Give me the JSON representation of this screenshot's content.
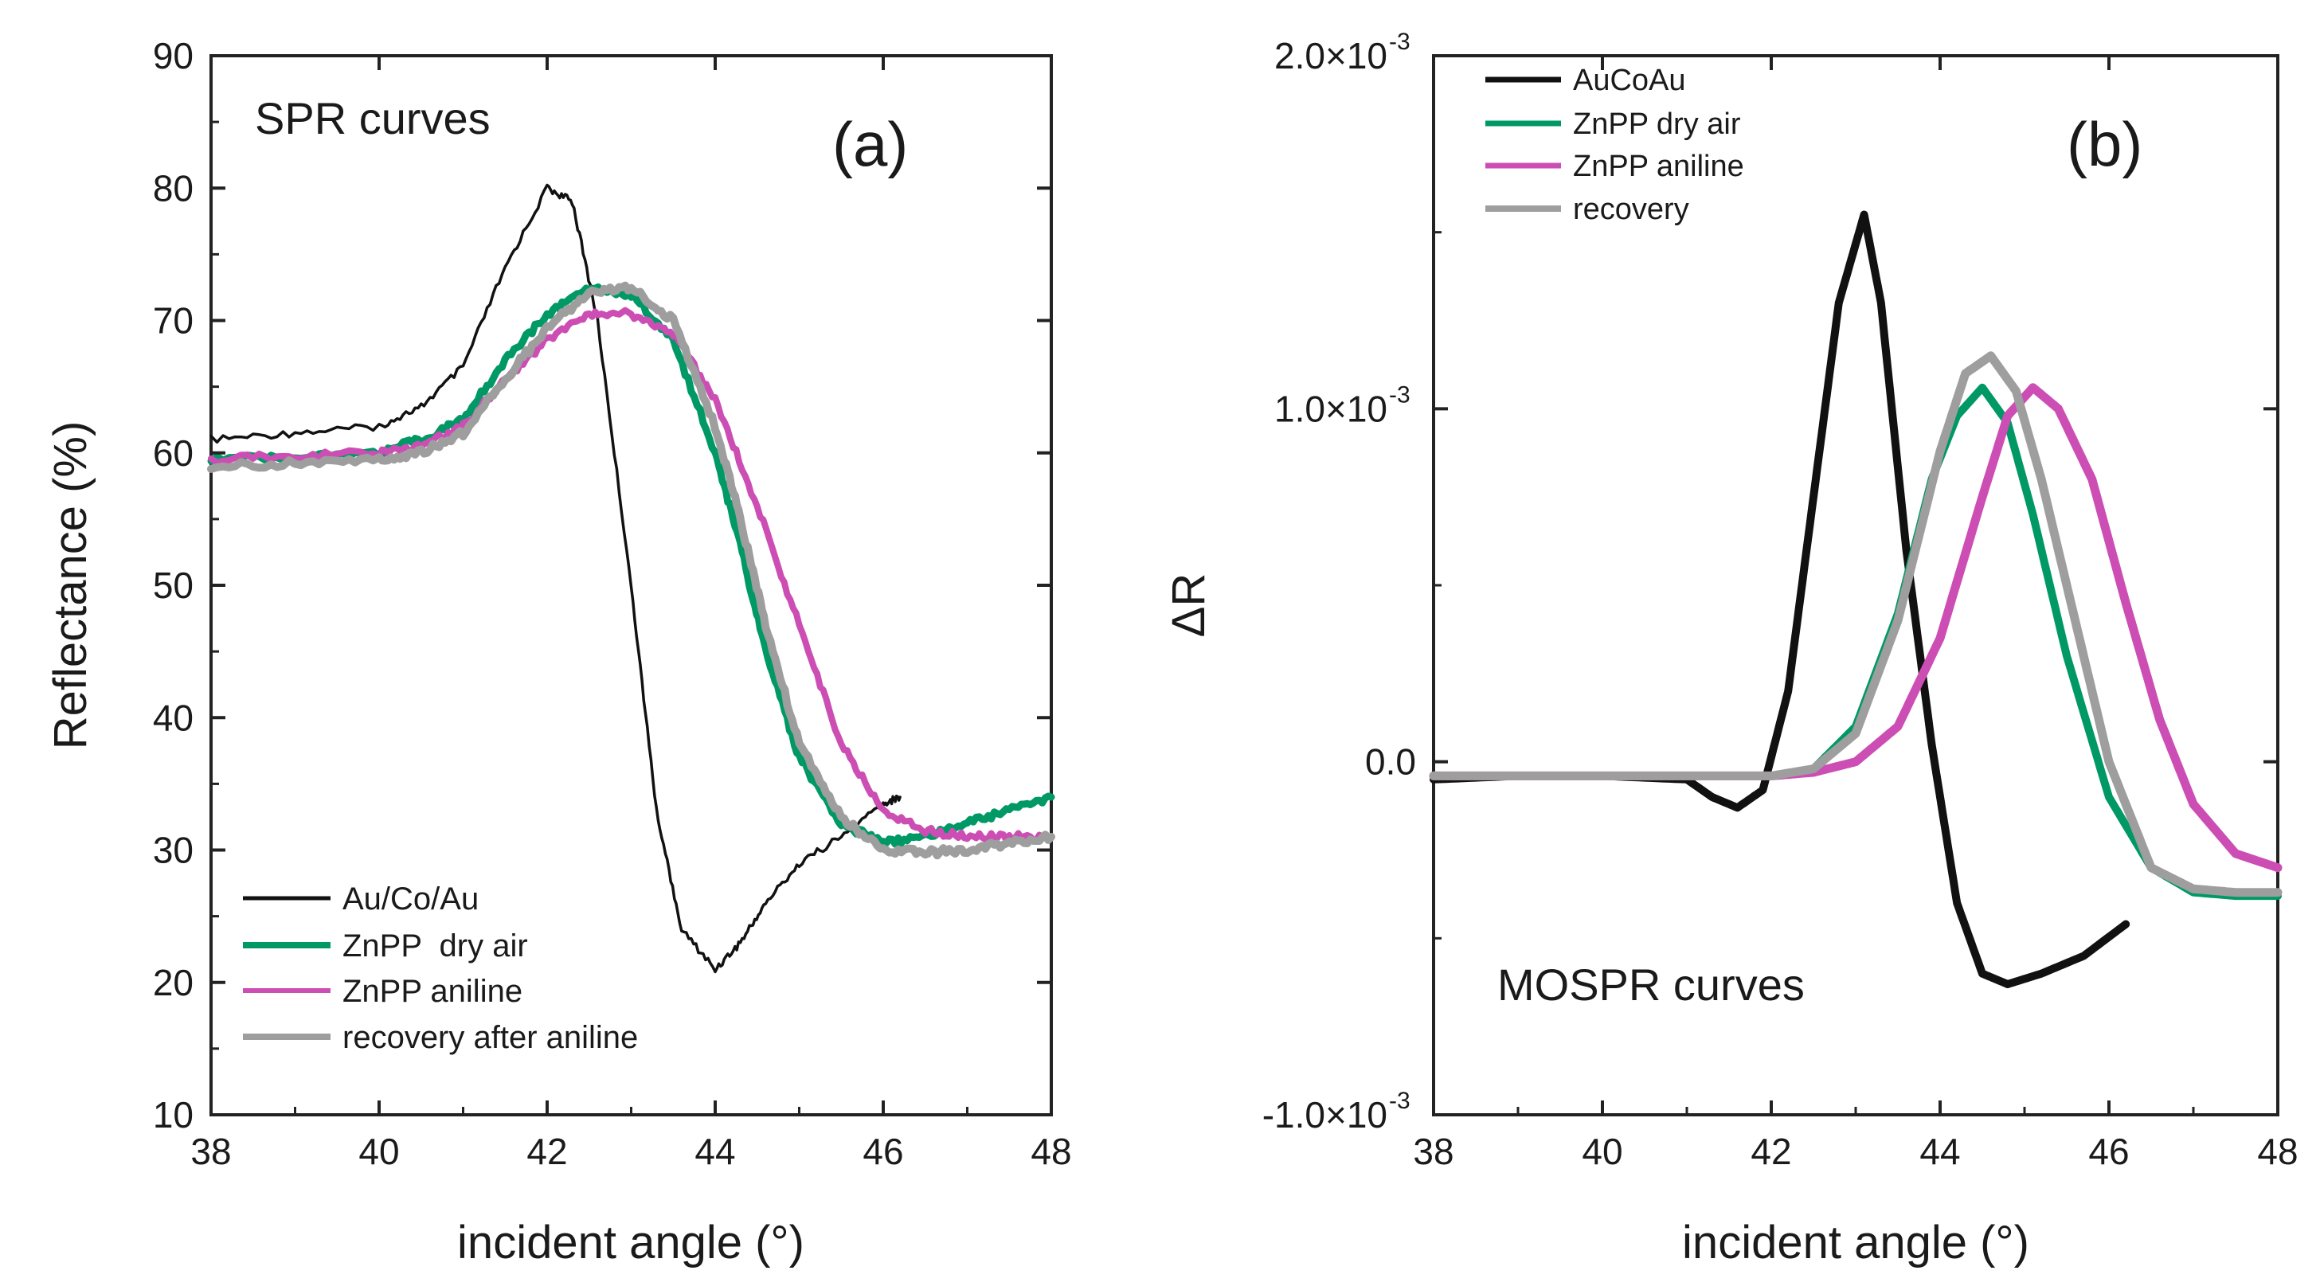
{
  "chart_data": [
    {
      "id": "panel-a",
      "type": "line",
      "panel_label": "(a)",
      "annotation": "SPR curves",
      "xlabel": "incident angle (°)",
      "ylabel": "Reflectance (%)",
      "xlim": [
        38,
        48
      ],
      "ylim": [
        10,
        90
      ],
      "xticks": [
        38,
        40,
        42,
        44,
        46,
        48
      ],
      "xtick_labels": [
        "38",
        "40",
        "42",
        "44",
        "46",
        "48"
      ],
      "yticks": [
        10,
        20,
        30,
        40,
        50,
        60,
        70,
        80,
        90
      ],
      "ytick_labels": [
        "10",
        "20",
        "30",
        "40",
        "50",
        "60",
        "70",
        "80",
        "90"
      ],
      "legend_position": "bottom-left",
      "series": [
        {
          "name": "Au/Co/Au",
          "color": "#111111",
          "x": [
            38,
            39,
            40,
            40.5,
            41,
            41.5,
            42,
            42.3,
            42.6,
            43,
            43.3,
            43.6,
            44,
            44.3,
            44.6,
            45,
            45.5,
            46,
            46.2
          ],
          "y": [
            61,
            61.5,
            62,
            63.5,
            66.5,
            74,
            80,
            79,
            70,
            50,
            33,
            24,
            21,
            23,
            26,
            29,
            31,
            33.5,
            34
          ]
        },
        {
          "name": "ZnPP  dry air",
          "color": "#009966",
          "x": [
            38,
            39,
            40,
            40.5,
            41,
            41.5,
            42,
            42.5,
            43,
            43.5,
            44,
            44.3,
            44.6,
            45,
            45.5,
            46,
            46.5,
            47,
            47.5,
            48
          ],
          "y": [
            59.5,
            59.8,
            60,
            61,
            62.5,
            67,
            70.5,
            72.5,
            72,
            68.5,
            60,
            53,
            45,
            37,
            32,
            30.5,
            31,
            32,
            33,
            34
          ]
        },
        {
          "name": "ZnPP aniline",
          "color": "#cc4eb4",
          "x": [
            38,
            39,
            40,
            40.5,
            41,
            41.5,
            42,
            42.5,
            43,
            43.5,
            44,
            44.5,
            45,
            45.5,
            46,
            46.5,
            47,
            47.5,
            48
          ],
          "y": [
            59.5,
            59.8,
            60,
            60.5,
            62,
            65.5,
            68.5,
            70.5,
            70.5,
            69,
            64,
            56,
            47,
            38,
            33,
            31.5,
            31,
            31,
            31
          ]
        },
        {
          "name": "recovery after aniline",
          "color": "#9e9e9e",
          "x": [
            38,
            39,
            40,
            40.5,
            41,
            41.5,
            42,
            42.5,
            43,
            43.5,
            44,
            44.3,
            44.6,
            45,
            45.5,
            46,
            46.5,
            47,
            47.5,
            48
          ],
          "y": [
            59,
            59.2,
            59.5,
            60,
            61.5,
            65.5,
            69.5,
            72,
            72.5,
            70,
            62,
            55,
            47,
            38,
            32.5,
            30,
            29.8,
            30,
            30.5,
            31
          ]
        }
      ]
    },
    {
      "id": "panel-b",
      "type": "line",
      "panel_label": "(b)",
      "annotation": "MOSPR curves",
      "xlabel": "incident angle (°)",
      "ylabel": "ΔR",
      "xlim": [
        38,
        48
      ],
      "ylim": [
        -0.001,
        0.002
      ],
      "xticks": [
        38,
        40,
        42,
        44,
        46,
        48
      ],
      "xtick_labels": [
        "38",
        "40",
        "42",
        "44",
        "46",
        "48"
      ],
      "yticks": [
        -0.001,
        0,
        0.001,
        0.002
      ],
      "ytick_labels": [
        "-1.0×10",
        "0.0",
        "1.0×10",
        "2.0×10"
      ],
      "ytick_exponents": [
        "-3",
        "",
        "-3",
        "-3"
      ],
      "legend_position": "top-left",
      "series": [
        {
          "name": "AuCoAu",
          "color": "#111111",
          "x": [
            38,
            39,
            40,
            41,
            41.3,
            41.6,
            41.9,
            42.2,
            42.5,
            42.8,
            43.1,
            43.3,
            43.6,
            43.9,
            44.2,
            44.5,
            44.8,
            45.2,
            45.7,
            46.2
          ],
          "y": [
            -5e-05,
            -4e-05,
            -4e-05,
            -5e-05,
            -0.0001,
            -0.00013,
            -8e-05,
            0.0002,
            0.00075,
            0.0013,
            0.00155,
            0.0013,
            0.0006,
            5e-05,
            -0.0004,
            -0.0006,
            -0.00063,
            -0.0006,
            -0.00055,
            -0.00046
          ]
        },
        {
          "name": "ZnPP dry air",
          "color": "#009966",
          "x": [
            38,
            39,
            40,
            41,
            42,
            42.5,
            43,
            43.5,
            43.9,
            44.2,
            44.5,
            44.8,
            45.1,
            45.5,
            46,
            46.5,
            47,
            47.5,
            48
          ],
          "y": [
            -4e-05,
            -4e-05,
            -4e-05,
            -4e-05,
            -4e-05,
            -2e-05,
            0.0001,
            0.00042,
            0.0008,
            0.00098,
            0.00106,
            0.00096,
            0.0007,
            0.0003,
            -0.0001,
            -0.0003,
            -0.00037,
            -0.00038,
            -0.00038
          ]
        },
        {
          "name": "ZnPP aniline",
          "color": "#cc4eb4",
          "x": [
            38,
            39,
            40,
            41,
            42,
            42.5,
            43,
            43.5,
            44,
            44.5,
            44.8,
            45.1,
            45.4,
            45.8,
            46.2,
            46.6,
            47,
            47.5,
            48
          ],
          "y": [
            -4e-05,
            -4e-05,
            -4e-05,
            -4e-05,
            -4e-05,
            -3e-05,
            0.0,
            0.0001,
            0.00035,
            0.00075,
            0.00098,
            0.00106,
            0.001,
            0.0008,
            0.00045,
            0.00012,
            -0.00012,
            -0.00026,
            -0.0003
          ]
        },
        {
          "name": "recovery",
          "color": "#9e9e9e",
          "x": [
            38,
            39,
            40,
            41,
            42,
            42.5,
            43,
            43.5,
            44,
            44.3,
            44.6,
            44.9,
            45.2,
            45.6,
            46,
            46.5,
            47,
            47.5,
            48
          ],
          "y": [
            -4e-05,
            -4e-05,
            -4e-05,
            -4e-05,
            -4e-05,
            -2e-05,
            8e-05,
            0.0004,
            0.00088,
            0.0011,
            0.00115,
            0.00105,
            0.0008,
            0.0004,
            0.0,
            -0.0003,
            -0.00036,
            -0.00037,
            -0.00037
          ]
        }
      ]
    }
  ]
}
